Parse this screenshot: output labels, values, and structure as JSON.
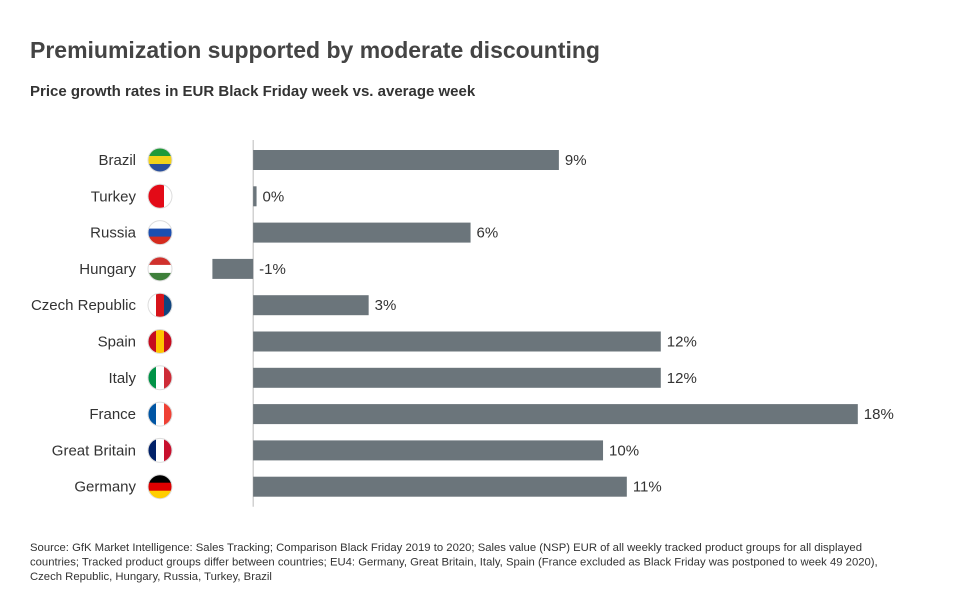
{
  "chart_data": {
    "type": "barh",
    "title": "Premiumization supported by moderate discounting",
    "subtitle": "Price growth rates in EUR Black Friday week vs. average week",
    "categories": [
      "Brazil",
      "Turkey",
      "Russia",
      "Hungary",
      "Czech Republic",
      "Spain",
      "Italy",
      "France",
      "Great Britain",
      "Germany"
    ],
    "values": [
      9,
      0.1,
      6.4,
      -1.2,
      3.4,
      12,
      12,
      17.8,
      10.3,
      11
    ],
    "value_labels": [
      "9%",
      "0%",
      "6%",
      "-1%",
      "3%",
      "12%",
      "12%",
      "18%",
      "10%",
      "11%"
    ],
    "color": "#6b757b",
    "xlim": [
      -1.3,
      18.1
    ],
    "source": [
      "Source: GfK Market Intelligence: Sales Tracking; Comparison Black Friday 2019 to 2020; Sales value (NSP) EUR of all weekly tracked product groups for all displayed",
      "countries; Tracked product groups differ between countries; EU4: Germany, Great Britain, Italy, Spain (France excluded as Black Friday was postponed to week 49 2020),",
      "Czech Republic, Hungary, Russia, Turkey, Brazil"
    ]
  }
}
